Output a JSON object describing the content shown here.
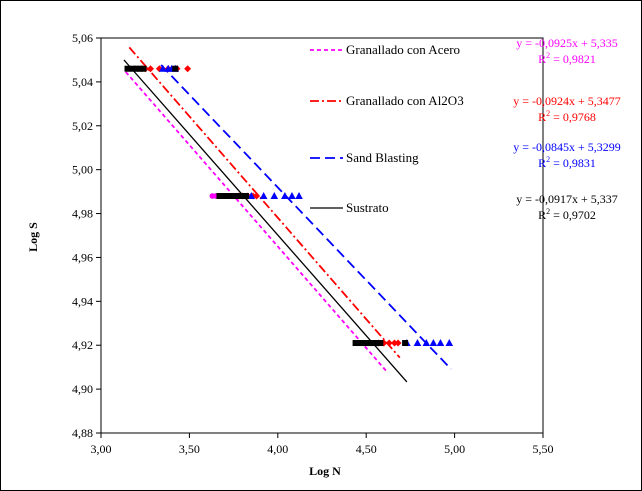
{
  "chart_data": {
    "type": "scatter",
    "xlabel": "Log N",
    "ylabel": "Log S",
    "xlim": [
      3.0,
      5.5
    ],
    "ylim": [
      4.88,
      5.06
    ],
    "xticks": [
      "3,00",
      "3,50",
      "4,00",
      "4,50",
      "5,00",
      "5,50"
    ],
    "yticks": [
      "4,88",
      "4,90",
      "4,92",
      "4,94",
      "4,96",
      "4,98",
      "5,00",
      "5,02",
      "5,04",
      "5,06"
    ],
    "grid": false,
    "legend_position": "right",
    "series": [
      {
        "name": "Granallado con Acero",
        "color": "#ff00ff",
        "line_style": "dash",
        "marker": "circle",
        "points": [
          [
            3.17,
            5.046
          ],
          [
            3.19,
            5.046
          ],
          [
            3.21,
            5.046
          ],
          [
            3.23,
            5.046
          ],
          [
            3.63,
            4.988
          ],
          [
            3.65,
            4.988
          ],
          [
            3.67,
            4.988
          ],
          [
            3.69,
            4.988
          ],
          [
            4.49,
            4.921
          ],
          [
            4.51,
            4.921
          ],
          [
            4.53,
            4.921
          ],
          [
            4.55,
            4.921
          ]
        ],
        "trendline": {
          "slope": -0.0925,
          "intercept": 5.335,
          "x_range": [
            3.14,
            4.62
          ]
        },
        "equation": "y = -0,0925x + 5,335",
        "r2_label": "R",
        "r2_value": " = 0,9821"
      },
      {
        "name": "Granallado con Al2O3",
        "color": "#ff0000",
        "line_style": "dashdot",
        "marker": "diamond",
        "points": [
          [
            3.25,
            5.046
          ],
          [
            3.28,
            5.046
          ],
          [
            3.33,
            5.046
          ],
          [
            3.38,
            5.046
          ],
          [
            3.43,
            5.046
          ],
          [
            3.49,
            5.046
          ],
          [
            3.78,
            4.988
          ],
          [
            3.8,
            4.988
          ],
          [
            3.83,
            4.988
          ],
          [
            3.86,
            4.988
          ],
          [
            3.88,
            4.988
          ],
          [
            4.57,
            4.921
          ],
          [
            4.6,
            4.921
          ],
          [
            4.63,
            4.921
          ],
          [
            4.66,
            4.921
          ],
          [
            4.68,
            4.921
          ]
        ],
        "trendline": {
          "slope": -0.0924,
          "intercept": 5.3477,
          "x_range": [
            3.16,
            4.69
          ]
        },
        "equation": "y = -0,0924x + 5,3477",
        "r2_label": "R",
        "r2_value": " = 0,9768"
      },
      {
        "name": "Sand Blasting",
        "color": "#0000ff",
        "line_style": "longdash",
        "marker": "triangle",
        "points": [
          [
            3.35,
            5.046
          ],
          [
            3.38,
            5.046
          ],
          [
            3.4,
            5.046
          ],
          [
            3.42,
            5.046
          ],
          [
            3.85,
            4.988
          ],
          [
            3.92,
            4.988
          ],
          [
            3.98,
            4.988
          ],
          [
            4.04,
            4.988
          ],
          [
            4.08,
            4.988
          ],
          [
            4.12,
            4.988
          ],
          [
            4.73,
            4.921
          ],
          [
            4.79,
            4.921
          ],
          [
            4.84,
            4.921
          ],
          [
            4.88,
            4.921
          ],
          [
            4.92,
            4.921
          ],
          [
            4.97,
            4.921
          ]
        ],
        "trendline": {
          "slope": -0.0845,
          "intercept": 5.3299,
          "x_range": [
            3.34,
            4.98
          ]
        },
        "equation": "y = -0,0845x + 5,3299",
        "r2_label": "R",
        "r2_value": " = 0,9831"
      },
      {
        "name": "Sustrato",
        "color": "#000000",
        "line_style": "solid",
        "marker": "square",
        "points": [
          [
            3.15,
            5.046
          ],
          [
            3.18,
            5.046
          ],
          [
            3.2,
            5.046
          ],
          [
            3.22,
            5.046
          ],
          [
            3.24,
            5.046
          ],
          [
            3.42,
            5.046
          ],
          [
            3.67,
            4.988
          ],
          [
            3.69,
            4.988
          ],
          [
            3.71,
            4.988
          ],
          [
            3.73,
            4.988
          ],
          [
            3.75,
            4.988
          ],
          [
            3.77,
            4.988
          ],
          [
            3.79,
            4.988
          ],
          [
            3.82,
            4.988
          ],
          [
            4.44,
            4.921
          ],
          [
            4.47,
            4.921
          ],
          [
            4.5,
            4.921
          ],
          [
            4.52,
            4.921
          ],
          [
            4.54,
            4.921
          ],
          [
            4.56,
            4.921
          ],
          [
            4.58,
            4.921
          ],
          [
            4.72,
            4.921
          ]
        ],
        "trendline": {
          "slope": -0.0917,
          "intercept": 5.337,
          "x_range": [
            3.13,
            4.73
          ]
        },
        "equation": "y = -0,0917x + 5,337",
        "r2_label": "R",
        "r2_value": " = 0,9702"
      }
    ],
    "extra_points": [
      {
        "color": "#339966",
        "marker": "circle",
        "points": [
          [
            3.25,
            5.046
          ],
          [
            3.63,
            4.988
          ],
          [
            3.65,
            4.988
          ],
          [
            4.55,
            4.921
          ]
        ]
      }
    ]
  }
}
